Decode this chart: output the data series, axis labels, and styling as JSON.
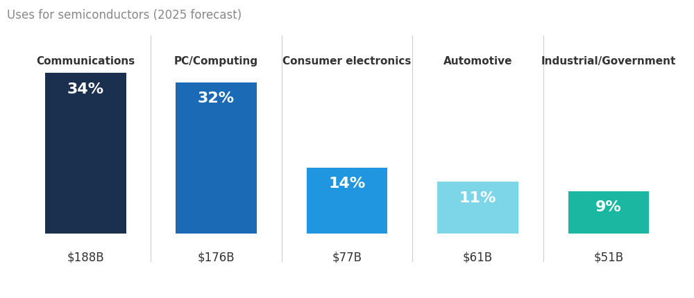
{
  "title": "Uses for semiconductors (2025 forecast)",
  "categories": [
    "Communications",
    "PC/Computing",
    "Consumer electronics",
    "Automotive",
    "Industrial/Government"
  ],
  "values": [
    34,
    32,
    14,
    11,
    9
  ],
  "dollar_labels": [
    "$188B",
    "$176B",
    "$77B",
    "$61B",
    "$51B"
  ],
  "pct_labels": [
    "34%",
    "32%",
    "14%",
    "11%",
    "9%"
  ],
  "bar_colors": [
    "#1b2f4e",
    "#1a6ab5",
    "#2196e0",
    "#7dd6e8",
    "#1ab8a0"
  ],
  "background_color": "#ffffff",
  "title_color": "#888888",
  "label_color": "#333333",
  "sep_color": "#cccccc",
  "title_fontsize": 12,
  "category_fontsize": 11,
  "pct_fontsize": 16,
  "dollar_fontsize": 12,
  "bar_width": 0.62,
  "max_val": 34,
  "figsize": [
    10.0,
    4.31
  ]
}
